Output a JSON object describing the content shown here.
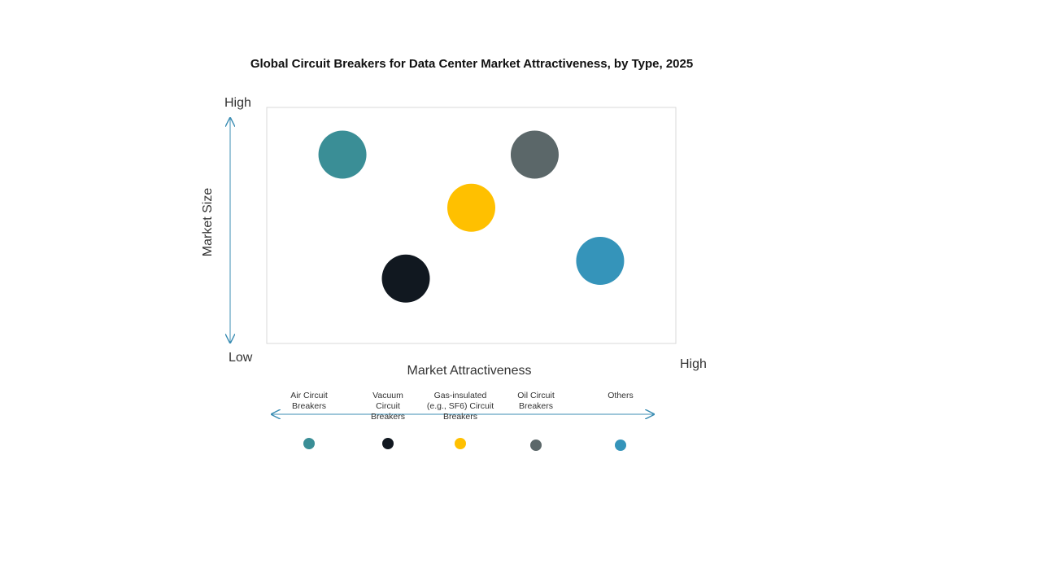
{
  "chart_data": {
    "type": "scatter",
    "title": "Global Circuit Breakers for Data Center Market Attractiveness,  by Type, 2025",
    "xlabel": "Market Attractiveness",
    "ylabel": "Market Size",
    "x_low_label": "Low",
    "x_high_label": "High",
    "y_high_label": "High",
    "xlim": [
      0,
      100
    ],
    "ylim": [
      0,
      100
    ],
    "grid": false,
    "legend": "bottom",
    "series": [
      {
        "name": "Air Circuit Breakers",
        "label_lines": [
          "Air Circuit",
          "Breakers"
        ],
        "x": 18.5,
        "y": 80,
        "color": "#3A8E96"
      },
      {
        "name": "Vacuum Circuit Breakers",
        "label_lines": [
          "Vacuum",
          "Circuit",
          "Breakers"
        ],
        "x": 34,
        "y": 27.5,
        "color": "#111820"
      },
      {
        "name": "Gas-insulated (e.g., SF6) Circuit Breakers",
        "label_lines": [
          "Gas-insulated",
          "(e.g., SF6) Circuit",
          "Breakers"
        ],
        "x": 50,
        "y": 57.5,
        "color": "#FFC000"
      },
      {
        "name": "Oil Circuit Breakers",
        "label_lines": [
          "Oil Circuit",
          "Breakers"
        ],
        "x": 65.5,
        "y": 80,
        "color": "#5B6769"
      },
      {
        "name": "Others",
        "label_lines": [
          "Others"
        ],
        "x": 81.5,
        "y": 35,
        "color": "#3594BA"
      }
    ]
  },
  "colors": {
    "axis_arrow": "#3B8DB3",
    "plot_border": "#D9D9D9"
  }
}
